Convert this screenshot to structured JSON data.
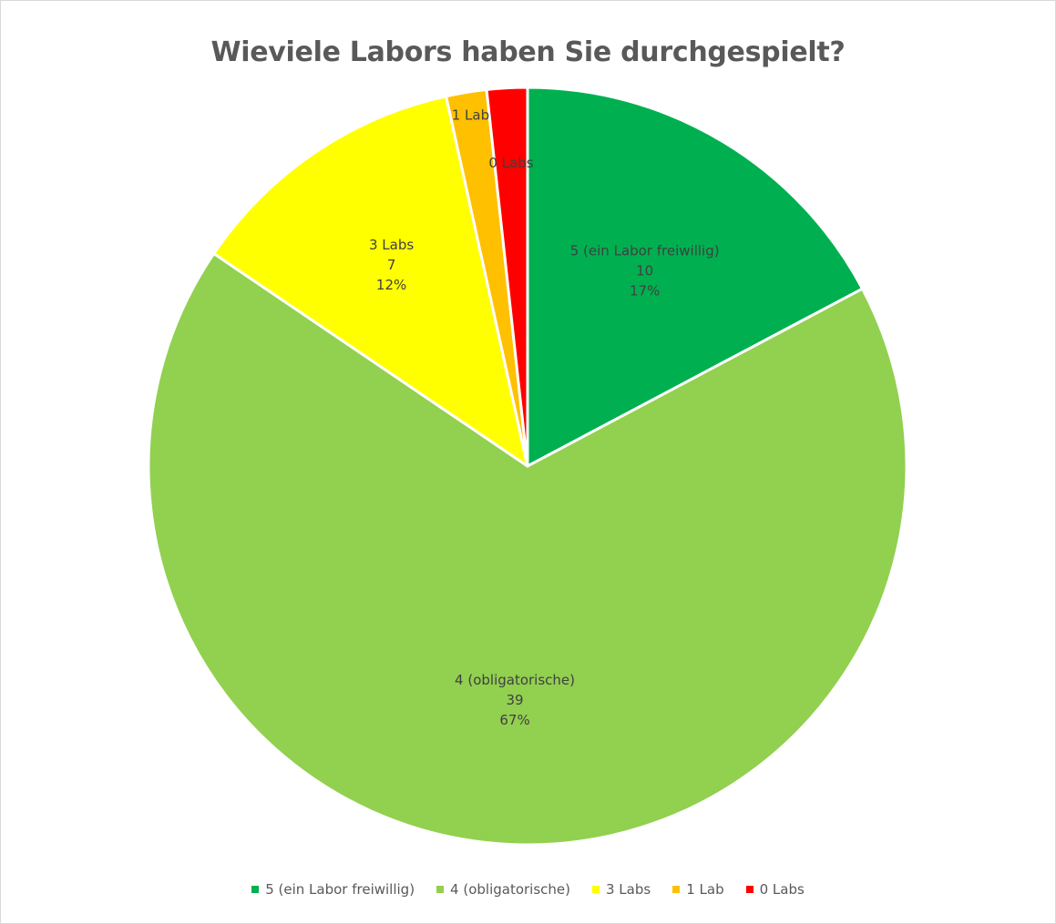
{
  "chart_data": {
    "type": "pie",
    "title": "Wieviele Labors haben Sie durchgespielt?",
    "categories": [
      "5 (ein Labor freiwillig)",
      "4 (obligatorische)",
      "3 Labs",
      "1 Lab",
      "0 Labs"
    ],
    "values": [
      10,
      39,
      7,
      1,
      1
    ],
    "percent_labels": [
      "17%",
      "67%",
      "12%",
      "",
      ""
    ],
    "colors": [
      "#00b050",
      "#92d050",
      "#ffff00",
      "#ffc000",
      "#ff0000"
    ],
    "slice_labels": [
      {
        "category": "5 (ein Labor freiwillig)",
        "value": "10",
        "percent": "17%"
      },
      {
        "category": "4 (obligatorische)",
        "value": "39",
        "percent": "67%"
      },
      {
        "category": "3  Labs",
        "value": "7",
        "percent": "12%"
      },
      {
        "category": "1 Lab",
        "value": "",
        "percent": ""
      },
      {
        "category": "0 Labs",
        "value": "",
        "percent": ""
      }
    ],
    "start_angle_deg": 0,
    "direction": "clockwise",
    "legend": {
      "position": "bottom",
      "entries": [
        "5 (ein Labor freiwillig)",
        "4 (obligatorische)",
        "3 Labs",
        "1 Lab",
        "0 Labs"
      ]
    }
  }
}
